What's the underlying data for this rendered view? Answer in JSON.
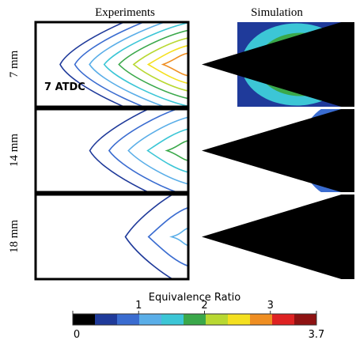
{
  "columns": [
    "Experiments",
    "Simulation"
  ],
  "rows": [
    "7 mm",
    "14 mm",
    "18 mm"
  ],
  "panel_label": "7 ATDC",
  "colorbar": {
    "title": "Equivalence Ratio",
    "range": [
      0,
      3.7
    ],
    "ticks": [
      0,
      1,
      2,
      3,
      3.7
    ],
    "colors": [
      "#000000",
      "#1f3a9a",
      "#3a6cd0",
      "#5aaee8",
      "#3cc6d6",
      "#3aa84a",
      "#b8d832",
      "#f4e020",
      "#ef8e22",
      "#de2222",
      "#8e1212"
    ]
  }
}
